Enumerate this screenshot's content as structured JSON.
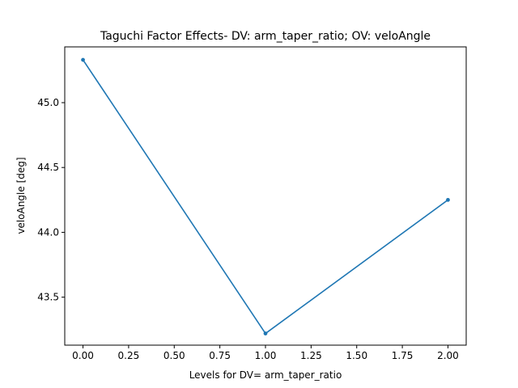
{
  "chart_data": {
    "type": "line",
    "title": "Taguchi Factor Effects- DV: arm_taper_ratio; OV: veloAngle",
    "xlabel": "Levels for DV= arm_taper_ratio",
    "ylabel": "veloAngle [deg]",
    "x": [
      0,
      1,
      2
    ],
    "series": [
      {
        "values": [
          45.33,
          43.22,
          44.25
        ],
        "color": "#1f77b4",
        "marker": "dot"
      }
    ],
    "xlim": [
      -0.1,
      2.1
    ],
    "ylim": [
      43.13,
      45.43
    ],
    "xticks": [
      "0.00",
      "0.25",
      "0.50",
      "0.75",
      "1.00",
      "1.25",
      "1.50",
      "1.75",
      "2.00"
    ],
    "yticks": [
      "43.5",
      "44.0",
      "44.5",
      "45.0"
    ],
    "grid": false,
    "legend": "none"
  }
}
